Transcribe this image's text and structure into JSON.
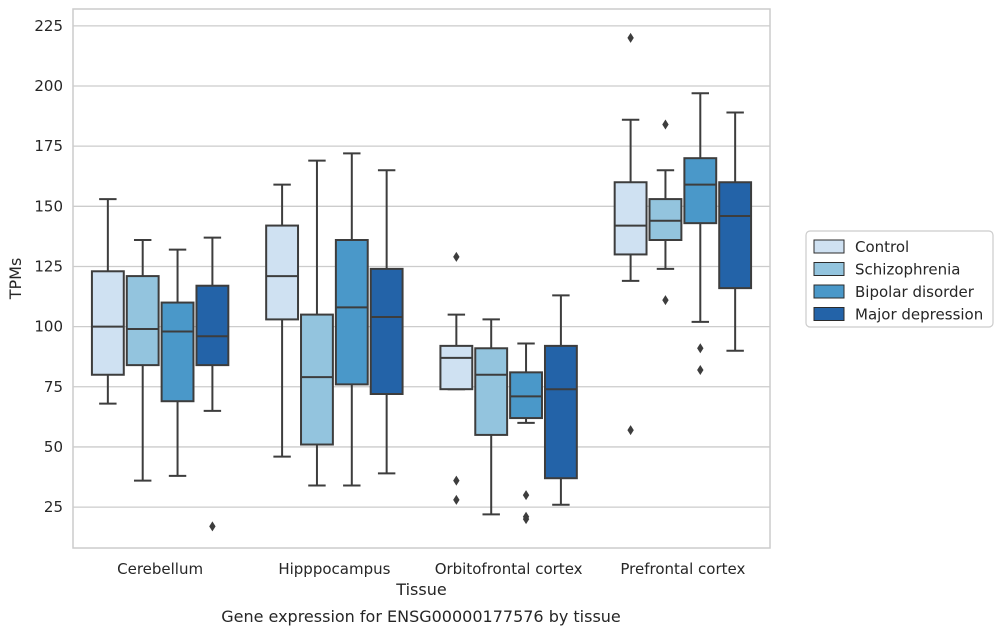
{
  "chart_data": {
    "type": "box",
    "title": "",
    "caption": "Gene expression for ENSG00000177576 by tissue",
    "xlabel": "Tissue",
    "ylabel": "TPMs",
    "ylim": [
      8,
      232
    ],
    "yticks": [
      25,
      50,
      75,
      100,
      125,
      150,
      175,
      200,
      225
    ],
    "grid": true,
    "legend_position": "right",
    "categories": [
      "Cerebellum",
      "Hipppocampus",
      "Orbitofrontal cortex",
      "Prefrontal cortex"
    ],
    "series": [
      {
        "name": "Control",
        "color": "#cfe1f2",
        "boxes": [
          {
            "whisker_low": 68,
            "q1": 80,
            "median": 100,
            "q3": 123,
            "whisker_high": 153,
            "outliers": []
          },
          {
            "whisker_low": 46,
            "q1": 103,
            "median": 121,
            "q3": 142,
            "whisker_high": 159,
            "outliers": []
          },
          {
            "whisker_low": 74,
            "q1": 74,
            "median": 87,
            "q3": 92,
            "whisker_high": 105,
            "outliers": [
              129,
              36,
              28
            ]
          },
          {
            "whisker_low": 119,
            "q1": 130,
            "median": 142,
            "q3": 160,
            "whisker_high": 186,
            "outliers": [
              220,
              57
            ]
          }
        ]
      },
      {
        "name": "Schizophrenia",
        "color": "#93c4de",
        "boxes": [
          {
            "whisker_low": 36,
            "q1": 84,
            "median": 99,
            "q3": 121,
            "whisker_high": 136,
            "outliers": []
          },
          {
            "whisker_low": 34,
            "q1": 51,
            "median": 79,
            "q3": 105,
            "whisker_high": 169,
            "outliers": []
          },
          {
            "whisker_low": 22,
            "q1": 55,
            "median": 80,
            "q3": 91,
            "whisker_high": 103,
            "outliers": []
          },
          {
            "whisker_low": 124,
            "q1": 136,
            "median": 144,
            "q3": 153,
            "whisker_high": 165,
            "outliers": [
              184,
              111
            ]
          }
        ]
      },
      {
        "name": "Bipolar disorder",
        "color": "#4a98c9",
        "boxes": [
          {
            "whisker_low": 38,
            "q1": 69,
            "median": 98,
            "q3": 110,
            "whisker_high": 132,
            "outliers": []
          },
          {
            "whisker_low": 34,
            "q1": 76,
            "median": 108,
            "q3": 136,
            "whisker_high": 172,
            "outliers": []
          },
          {
            "whisker_low": 60,
            "q1": 62,
            "median": 71,
            "q3": 81,
            "whisker_high": 93,
            "outliers": [
              30,
              21,
              20
            ]
          },
          {
            "whisker_low": 102,
            "q1": 143,
            "median": 159,
            "q3": 170,
            "whisker_high": 197,
            "outliers": [
              91,
              82
            ]
          }
        ]
      },
      {
        "name": "Major depression",
        "color": "#2363a8",
        "boxes": [
          {
            "whisker_low": 65,
            "q1": 84,
            "median": 96,
            "q3": 117,
            "whisker_high": 137,
            "outliers": [
              17
            ]
          },
          {
            "whisker_low": 39,
            "q1": 72,
            "median": 104,
            "q3": 124,
            "whisker_high": 165,
            "outliers": []
          },
          {
            "whisker_low": 26,
            "q1": 37,
            "median": 74,
            "q3": 92,
            "whisker_high": 113,
            "outliers": []
          },
          {
            "whisker_low": 90,
            "q1": 116,
            "median": 146,
            "q3": 160,
            "whisker_high": 189,
            "outliers": []
          }
        ]
      }
    ]
  }
}
